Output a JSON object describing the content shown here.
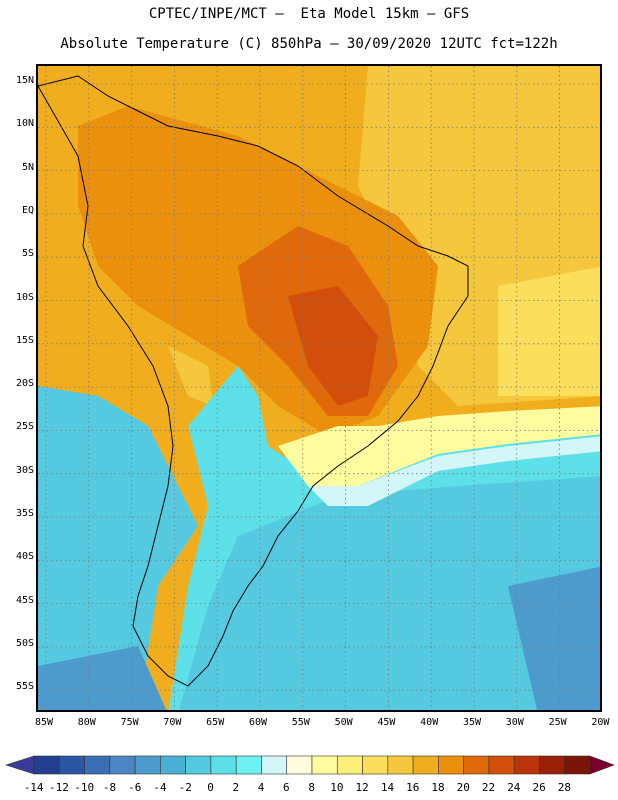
{
  "header": {
    "line1": "CPTEC/INPE/MCT –  Eta Model 15km – GFS",
    "line2": "Absolute Temperature (C) 850hPa – 30/09/2020 12UTC fct=122h"
  },
  "map": {
    "lat_labels": [
      "15N",
      "10N",
      "5N",
      "EQ",
      "5S",
      "10S",
      "15S",
      "20S",
      "25S",
      "30S",
      "35S",
      "40S",
      "45S",
      "50S",
      "55S"
    ],
    "lon_labels": [
      "85W",
      "80W",
      "75W",
      "70W",
      "65W",
      "60W",
      "55W",
      "50W",
      "45W",
      "40W",
      "35W",
      "30W",
      "25W",
      "20W"
    ],
    "grid": "dotted",
    "lon_range": [
      -86,
      -19.5
    ],
    "lat_range": [
      16,
      -58
    ]
  },
  "colorbar": {
    "labels": [
      "-14",
      "-12",
      "-10",
      "-8",
      "-6",
      "-4",
      "-2",
      "0",
      "2",
      "4",
      "6",
      "8",
      "10",
      "12",
      "14",
      "16",
      "18",
      "20",
      "22",
      "24",
      "26",
      "28"
    ],
    "colors": [
      "#233f90",
      "#2a56a4",
      "#3a6fb5",
      "#4d86c3",
      "#4d9bcc",
      "#4cb0d6",
      "#55c9df",
      "#5ee0e8",
      "#6ef1f2",
      "#d3f6f9",
      "#fffbdc",
      "#fffb9f",
      "#fdf07a",
      "#fade5c",
      "#f5c73d",
      "#f0ae1e",
      "#ea900d",
      "#e06a0b",
      "#d24f0b",
      "#b93409",
      "#9a2008",
      "#7a1609"
    ],
    "low_arrow_color": "#3a3a9a",
    "high_arrow_color": "#7a0030"
  }
}
